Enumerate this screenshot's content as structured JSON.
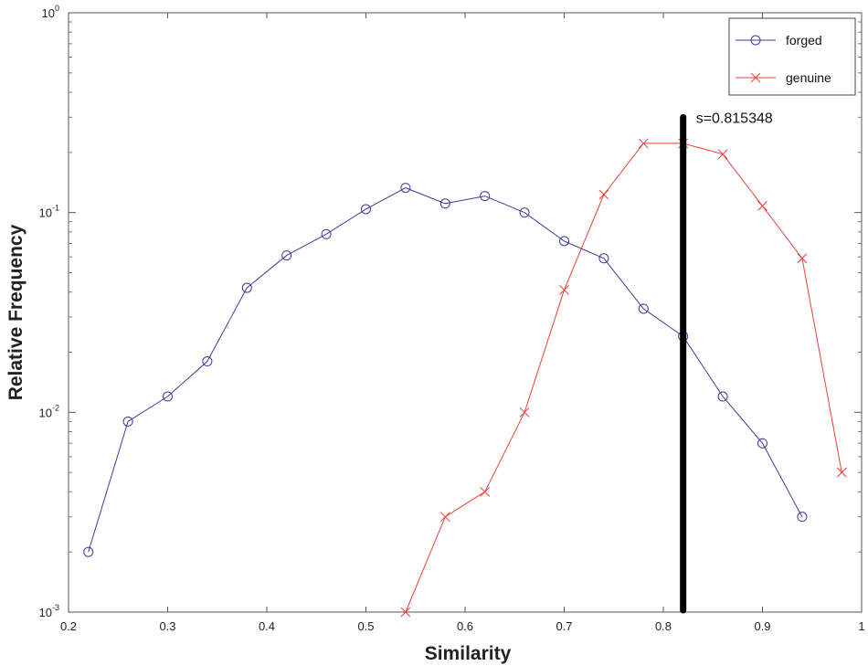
{
  "chart_data": {
    "type": "line",
    "xlabel": "Similarity",
    "ylabel": "Relative Frequency",
    "xlim": [
      0.2,
      1.0
    ],
    "ylim": [
      0.001,
      1
    ],
    "yscale": "log",
    "grid": false,
    "legend_position": "top-right",
    "x_ticks": [
      "0.2",
      "0.3",
      "0.4",
      "0.5",
      "0.6",
      "0.7",
      "0.8",
      "0.9",
      "1"
    ],
    "y_ticks": [
      {
        "value": 0.001,
        "base": "10",
        "exp": "-3"
      },
      {
        "value": 0.01,
        "base": "10",
        "exp": "-2"
      },
      {
        "value": 0.1,
        "base": "10",
        "exp": "-1"
      },
      {
        "value": 1,
        "base": "10",
        "exp": "0"
      }
    ],
    "series": [
      {
        "name": "forged",
        "color": "#3b3b9c",
        "marker": "circle",
        "x": [
          0.22,
          0.26,
          0.3,
          0.34,
          0.38,
          0.42,
          0.46,
          0.5,
          0.54,
          0.58,
          0.62,
          0.66,
          0.7,
          0.74,
          0.78,
          0.82,
          0.86,
          0.9,
          0.94
        ],
        "y": [
          0.002,
          0.009,
          0.012,
          0.018,
          0.042,
          0.061,
          0.078,
          0.104,
          0.133,
          0.111,
          0.121,
          0.1,
          0.072,
          0.059,
          0.033,
          0.024,
          0.012,
          0.007,
          0.003
        ]
      },
      {
        "name": "genuine",
        "color": "#e8403a",
        "marker": "x",
        "x": [
          0.54,
          0.58,
          0.62,
          0.66,
          0.7,
          0.74,
          0.78,
          0.82,
          0.86,
          0.9,
          0.94,
          0.98
        ],
        "y": [
          0.001,
          0.003,
          0.004,
          0.01,
          0.041,
          0.123,
          0.222,
          0.222,
          0.196,
          0.108,
          0.059,
          0.005
        ]
      }
    ],
    "threshold": {
      "x": 0.82,
      "y_top": 0.3,
      "label": "s=0.815348",
      "color": "#000000"
    }
  }
}
